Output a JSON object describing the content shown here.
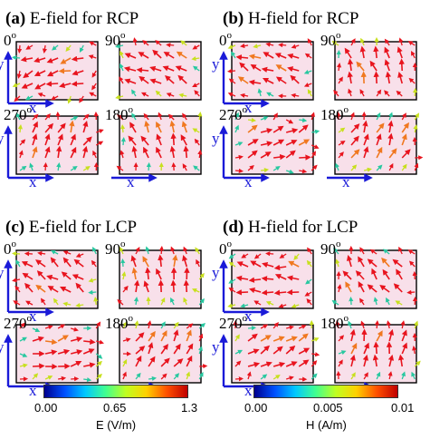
{
  "panels": [
    {
      "id": "a",
      "label": "(a)",
      "title": "E-field for RCP",
      "pattern": 0
    },
    {
      "id": "b",
      "label": "(b)",
      "title": "H-field for RCP",
      "pattern": 1
    },
    {
      "id": "c",
      "label": "(c)",
      "title": "E-field for LCP",
      "pattern": 2
    },
    {
      "id": "d",
      "label": "(d)",
      "title": "H-field for LCP",
      "pattern": 3
    }
  ],
  "subplots": [
    {
      "angle": "0",
      "deg": "o",
      "x_axis": "x",
      "y_axis": "y",
      "rot": 0
    },
    {
      "angle": "90",
      "deg": "o",
      "rot": 90
    },
    {
      "angle": "270",
      "deg": "o",
      "x_axis": "x",
      "y_axis": "y",
      "rot": 270
    },
    {
      "angle": "180",
      "deg": "o",
      "x_axis": "x",
      "rot": 180
    }
  ],
  "colorbars": [
    {
      "id": "E",
      "ticks": [
        "0.00",
        "0.65",
        "1.3"
      ],
      "title": "E (V/m)"
    },
    {
      "id": "H",
      "ticks": [
        "0.00",
        "0.005",
        "0.01"
      ],
      "title": "H (A/m)"
    }
  ],
  "colors": {
    "arrow_high": "#e8141e",
    "arrow_mid": "#f07820",
    "arrow_low": "#c8e01e",
    "arrow_cyan": "#28c8a0",
    "axis_blue": "#1a1ad8",
    "patch_fill": "#f8e0ea",
    "frame": "#000000",
    "colormap": [
      "#00008f",
      "#0050ff",
      "#00c8ff",
      "#40ff90",
      "#c0ff20",
      "#ffd000",
      "#ff5000",
      "#c00000"
    ]
  }
}
